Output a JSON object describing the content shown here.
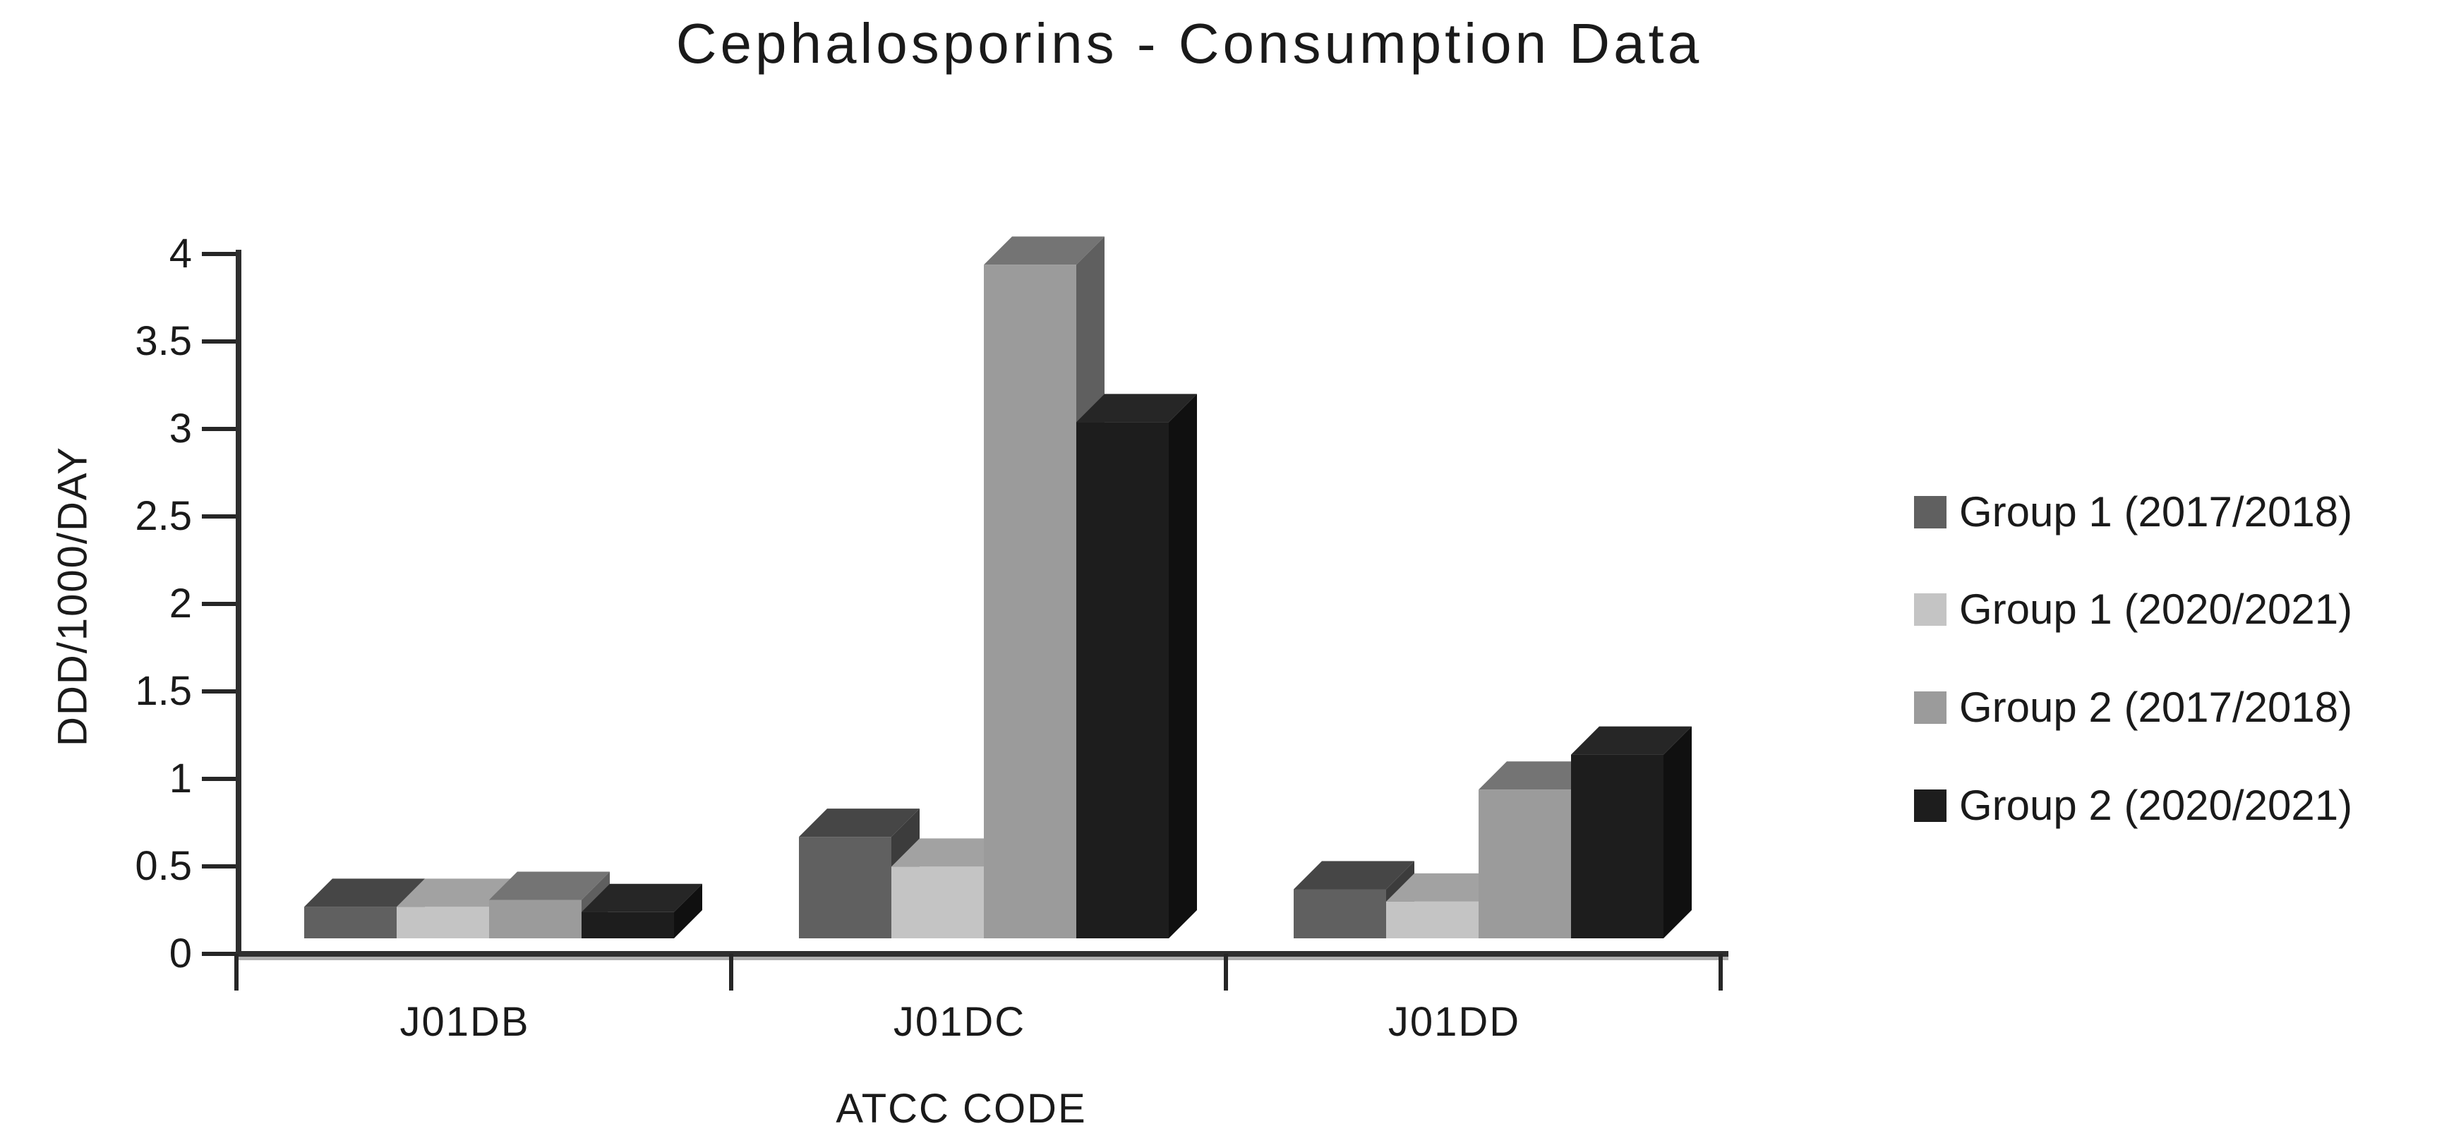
{
  "chart_data": {
    "type": "bar",
    "subtype": "3d-clustered",
    "title": "Cephalosporins - Consumption Data",
    "xlabel": "ATCC CODE",
    "ylabel": "DDD/1000/DAY",
    "categories": [
      "J01DB",
      "J01DC",
      "J01DD"
    ],
    "series": [
      {
        "name": "Group 1 (2017/2018)",
        "values": [
          0.18,
          0.58,
          0.28
        ],
        "color": "#606060",
        "top_color": "#464646",
        "side_color": "#3C3C3C"
      },
      {
        "name": "Group 1 (2020/2021)",
        "values": [
          0.18,
          0.41,
          0.21
        ],
        "color": "#C4C4C4",
        "top_color": "#A2A2A2",
        "side_color": "#8E8E8E"
      },
      {
        "name": "Group 2 (2017/2018)",
        "values": [
          0.22,
          3.85,
          0.85
        ],
        "color": "#9B9B9B",
        "top_color": "#747474",
        "side_color": "#5F5F5F"
      },
      {
        "name": "Group 2 (2020/2021)",
        "values": [
          0.15,
          2.95,
          1.05
        ],
        "color": "#1D1D1D",
        "top_color": "#262626",
        "side_color": "#101010"
      }
    ],
    "ylim": [
      0,
      4
    ],
    "ytick_step": 0.5,
    "yticks": [
      "0",
      "0.5",
      "1",
      "1.5",
      "2",
      "2.5",
      "3",
      "3.5",
      "4"
    ],
    "grid": false,
    "legend_position": "right",
    "axis_color": "#2e2e2e",
    "tick_color": "#262626",
    "floor_edge_color": "#aeaeae",
    "text_color": "#1a1a1a"
  }
}
